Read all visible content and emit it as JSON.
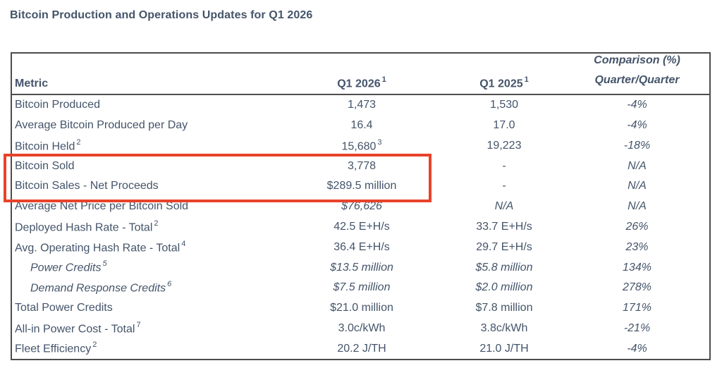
{
  "page_title": "Bitcoin Production and Operations Updates for Q1 2026",
  "colors": {
    "text": "#44546A",
    "table_border": "#4d4d4d",
    "highlight_red": "#E8432B"
  },
  "table": {
    "columns": [
      {
        "label": "Metric",
        "sup": ""
      },
      {
        "label": "Q1 2026",
        "sup": "1"
      },
      {
        "label": "Q1 2025",
        "sup": "1"
      },
      {
        "label": "Comparison (%)",
        "label2": "Quarter/Quarter"
      }
    ],
    "rows": [
      {
        "metric": "Bitcoin Produced",
        "metric_sup": "",
        "q1_2026": "1,473",
        "q1_2026_sup": "",
        "q1_2025": "1,530",
        "comparison": "-4%",
        "style": ""
      },
      {
        "metric": "Average Bitcoin Produced per Day",
        "metric_sup": "",
        "q1_2026": "16.4",
        "q1_2026_sup": "",
        "q1_2025": "17.0",
        "comparison": "-4%",
        "style": ""
      },
      {
        "metric": "Bitcoin Held",
        "metric_sup": "2",
        "q1_2026": "15,680",
        "q1_2026_sup": "3",
        "q1_2025": "19,223",
        "comparison": "-18%",
        "style": ""
      },
      {
        "metric": "Bitcoin Sold",
        "metric_sup": "",
        "q1_2026": "3,778",
        "q1_2026_sup": "",
        "q1_2025": "-",
        "comparison": "N/A",
        "style": ""
      },
      {
        "metric": "Bitcoin Sales - Net Proceeds",
        "metric_sup": "",
        "q1_2026": "$289.5 million",
        "q1_2026_sup": "",
        "q1_2025": "-",
        "comparison": "N/A",
        "style": ""
      },
      {
        "metric": "Average Net Price per Bitcoin Sold",
        "metric_sup": "",
        "q1_2026": "$76,626",
        "q1_2026_sup": "",
        "q1_2025": "N/A",
        "comparison": "N/A",
        "style": "value_italic"
      },
      {
        "metric": "Deployed Hash Rate - Total",
        "metric_sup": "2",
        "q1_2026": "42.5 E+H/s",
        "q1_2026_sup": "",
        "q1_2025": "33.7 E+H/s",
        "comparison": "26%",
        "style": ""
      },
      {
        "metric": "Avg. Operating Hash Rate - Total",
        "metric_sup": "4",
        "q1_2026": "36.4 E+H/s",
        "q1_2026_sup": "",
        "q1_2025": "29.7 E+H/s",
        "comparison": "23%",
        "style": ""
      },
      {
        "metric": "Power Credits",
        "metric_sup": "5",
        "q1_2026": "$13.5 million",
        "q1_2026_sup": "",
        "q1_2025": "$5.8 million",
        "comparison": "134%",
        "style": "sub"
      },
      {
        "metric": "Demand Response Credits",
        "metric_sup": "6",
        "q1_2026": "$7.5 million",
        "q1_2026_sup": "",
        "q1_2025": "$2.0 million",
        "comparison": "278%",
        "style": "sub"
      },
      {
        "metric": "Total Power Credits",
        "metric_sup": "",
        "q1_2026": "$21.0 million",
        "q1_2026_sup": "",
        "q1_2025": "$7.8 million",
        "comparison": "171%",
        "style": ""
      },
      {
        "metric": "All-in Power Cost - Total",
        "metric_sup": "7",
        "q1_2026": "3.0c/kWh",
        "q1_2026_sup": "",
        "q1_2025": "3.8c/kWh",
        "comparison": "-21%",
        "style": ""
      },
      {
        "metric": "Fleet Efficiency",
        "metric_sup": "2",
        "q1_2026": "20.2 J/TH",
        "q1_2026_sup": "",
        "q1_2025": "21.0 J/TH",
        "comparison": "-4%",
        "style": ""
      }
    ]
  },
  "highlight_box": {
    "color": "#E8432B",
    "highlighted_rows": "Bitcoin Sold, Bitcoin Sales - Net Proceeds"
  }
}
